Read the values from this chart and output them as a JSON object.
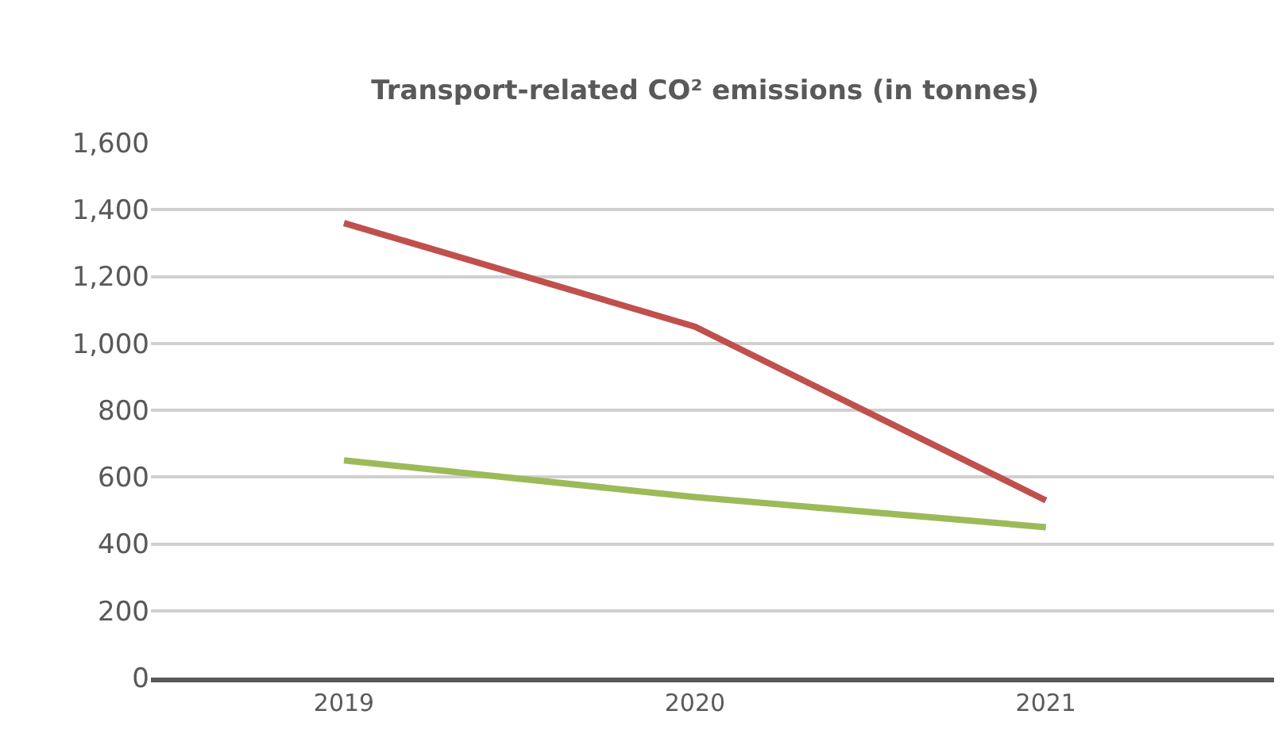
{
  "chart_data": {
    "type": "line",
    "title": "Transport-related CO² emissions (in tonnes)",
    "categories": [
      "2019",
      "2020",
      "2021"
    ],
    "series": [
      {
        "color": "#c0504d",
        "values": [
          1360,
          1050,
          530
        ]
      },
      {
        "color": "#9bbb59",
        "values": [
          650,
          540,
          450
        ]
      }
    ],
    "ylim": [
      0,
      1600
    ],
    "yticks": [
      0,
      200,
      400,
      600,
      800,
      {
        "value": 1000,
        "label": "1,000"
      },
      {
        "value": 1200,
        "label": "1,200"
      },
      {
        "value": 1400,
        "label": "1,400"
      },
      {
        "value": 1600,
        "label": "1,600"
      }
    ],
    "grid": "y",
    "marker": "none",
    "line_style": "solid"
  }
}
